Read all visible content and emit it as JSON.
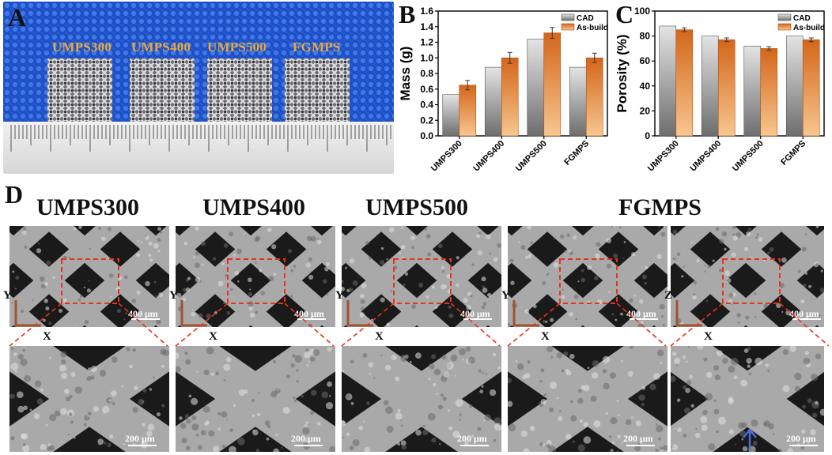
{
  "panel_letters": {
    "a": "A",
    "b": "B",
    "c": "C",
    "d": "D"
  },
  "panel_a": {
    "samples": [
      "UMPS300",
      "UMPS400",
      "UMPS500",
      "FGMPS"
    ]
  },
  "chart_data": [
    {
      "type": "bar",
      "panel": "B",
      "categories": [
        "UMPS300",
        "UMPS400",
        "UMPS500",
        "FGMPS"
      ],
      "series": [
        {
          "name": "CAD",
          "values": [
            0.53,
            0.88,
            1.24,
            0.88
          ]
        },
        {
          "name": "As-build",
          "values": [
            0.65,
            1.0,
            1.32,
            1.0
          ],
          "errors": [
            0.06,
            0.07,
            0.07,
            0.06
          ]
        }
      ],
      "xlabel": "",
      "ylabel": "Mass (g)",
      "ylim": [
        0.0,
        1.6
      ],
      "yticks": [
        "0.0",
        "0.2",
        "0.4",
        "0.6",
        "0.8",
        "1.0",
        "1.2",
        "1.4",
        "1.6"
      ],
      "legend": "top-right",
      "colors": {
        "CAD": "#8c8c8c",
        "As-build": "#e37c2a"
      }
    },
    {
      "type": "bar",
      "panel": "C",
      "categories": [
        "UMPS300",
        "UMPS400",
        "UMPS500",
        "FGMPS"
      ],
      "series": [
        {
          "name": "CAD",
          "values": [
            88,
            80,
            72,
            80
          ]
        },
        {
          "name": "As-build",
          "values": [
            85,
            77,
            70,
            77
          ],
          "errors": [
            1.5,
            1.5,
            1.5,
            1.5
          ]
        }
      ],
      "xlabel": "",
      "ylabel": "Porosity (%)",
      "ylim": [
        0,
        100
      ],
      "yticks": [
        "0",
        "20",
        "40",
        "60",
        "80",
        "100"
      ],
      "legend": "top-right",
      "colors": {
        "CAD": "#8c8c8c",
        "As-build": "#e37c2a"
      }
    }
  ],
  "panel_d": {
    "titles": [
      "UMPS300",
      "UMPS400",
      "UMPS500",
      "FGMPS"
    ],
    "top_images": [
      {
        "scale": "400 μm",
        "axis_vertical": "Y",
        "axis_horizontal": "X"
      },
      {
        "scale": "400 μm",
        "axis_vertical": "Y",
        "axis_horizontal": "X"
      },
      {
        "scale": "400 μm",
        "axis_vertical": "Y",
        "axis_horizontal": "X"
      },
      {
        "scale": "400 μm",
        "axis_vertical": "Y",
        "axis_horizontal": "X"
      },
      {
        "scale": "400 μm",
        "axis_vertical": "Z",
        "axis_horizontal": "X"
      }
    ],
    "bottom_images": [
      {
        "scale": "200 μm"
      },
      {
        "scale": "200 μm"
      },
      {
        "scale": "200 μm"
      },
      {
        "scale": "200 μm"
      },
      {
        "scale": "200 μm"
      }
    ]
  }
}
